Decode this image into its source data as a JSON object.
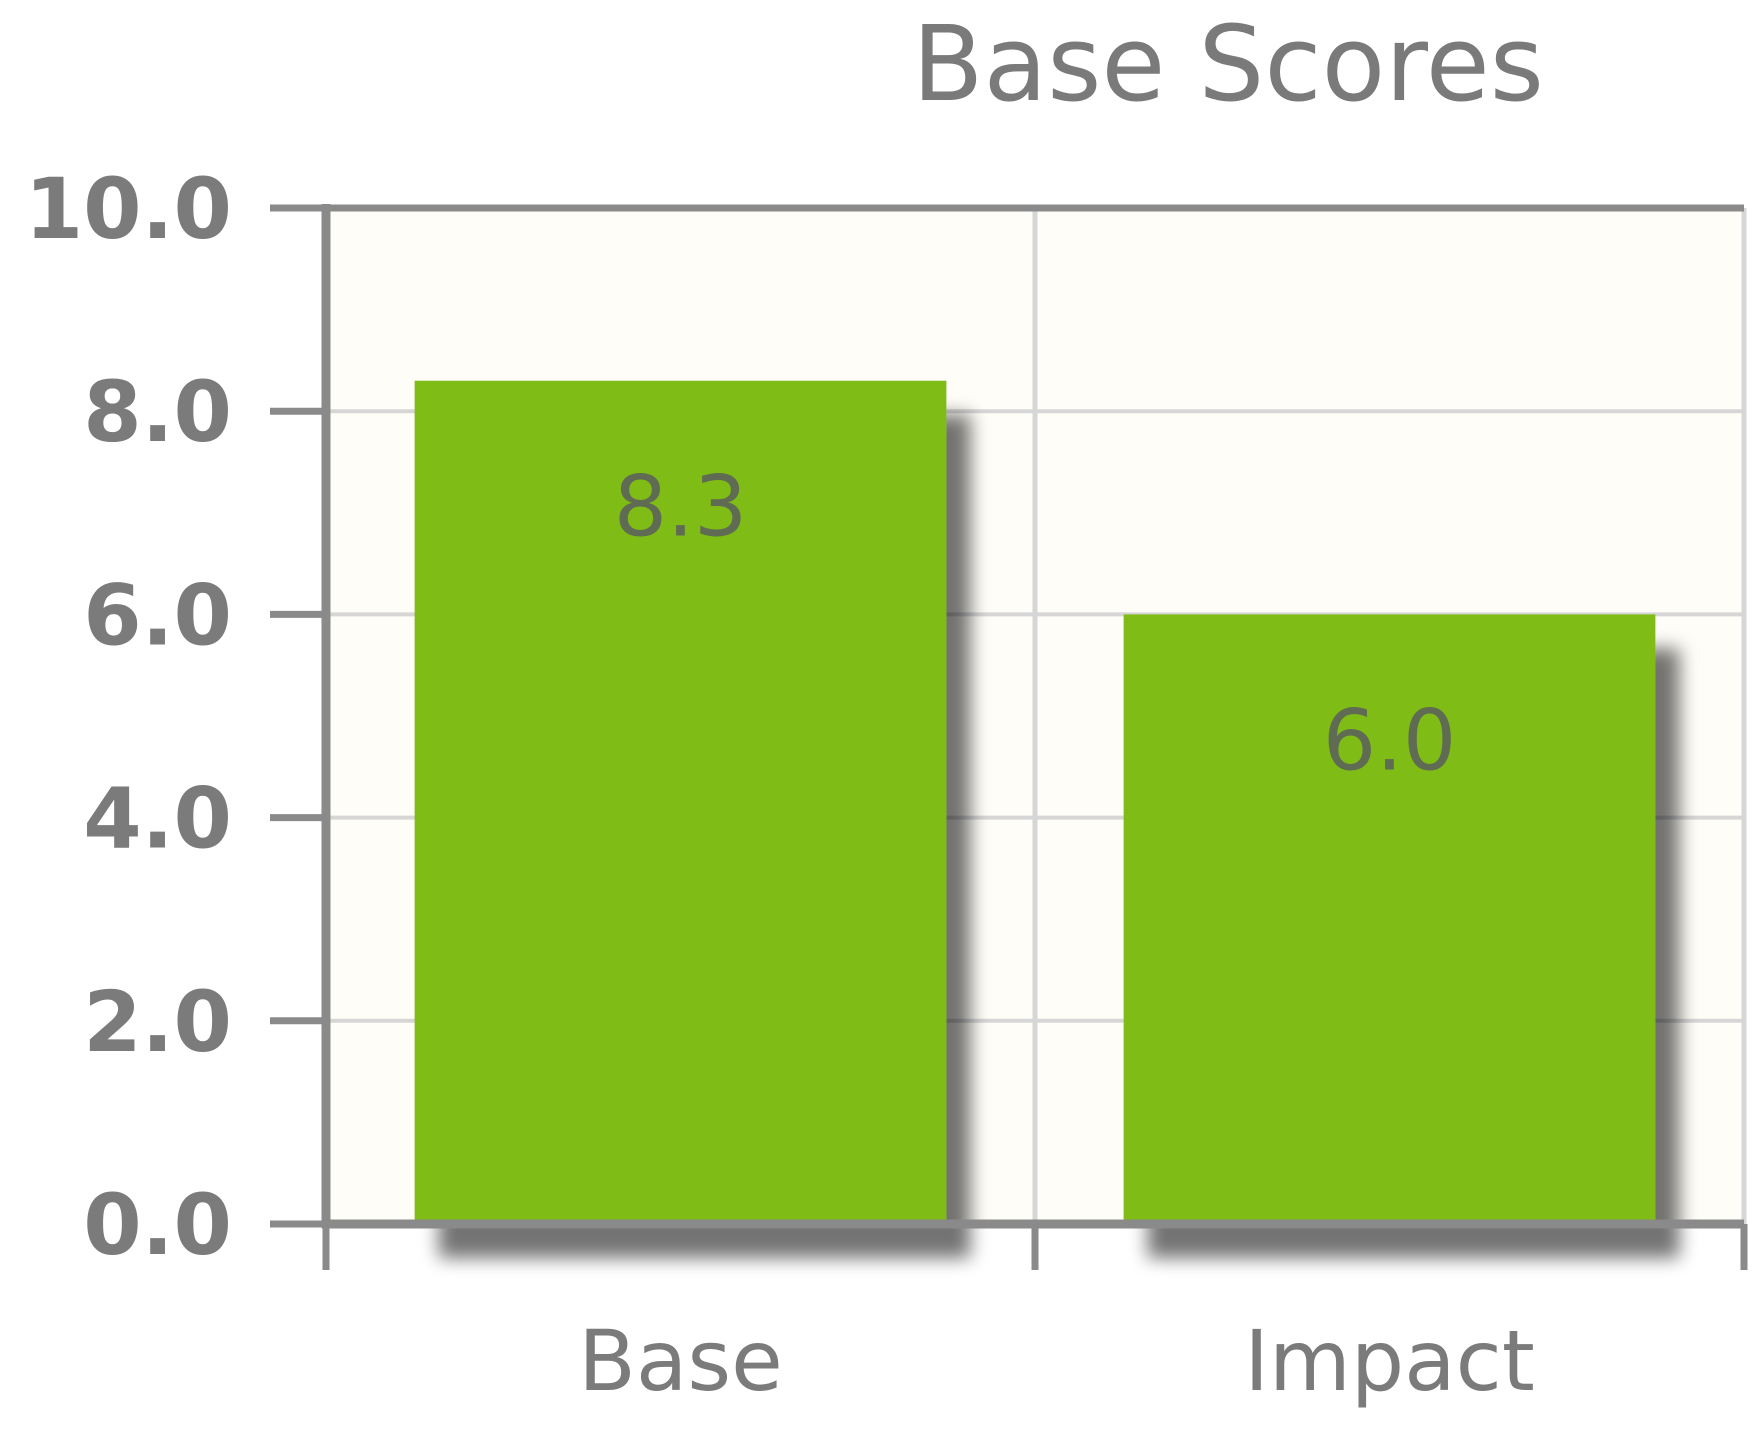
{
  "chart_data": {
    "type": "bar",
    "title": "Base Scores",
    "categories": [
      "Base",
      "Impact"
    ],
    "values": [
      8.3,
      6.0
    ],
    "data_labels": [
      "8.3",
      "6.0"
    ],
    "y_ticks": [
      0,
      2,
      4,
      6,
      8,
      10
    ],
    "y_tick_labels": [
      "0.0",
      "2.0",
      "4.0",
      "6.0",
      "8.0",
      "10.0"
    ],
    "ylim": [
      0,
      10
    ],
    "xlabel": "",
    "ylabel": "",
    "grid": true,
    "legend": "none",
    "colors": {
      "bar": "#7fbc18",
      "plot_background": "#fffdf7",
      "axis": "#8a8a8a",
      "grid": "#d6d6d6",
      "text": "#7b7b7b"
    }
  }
}
